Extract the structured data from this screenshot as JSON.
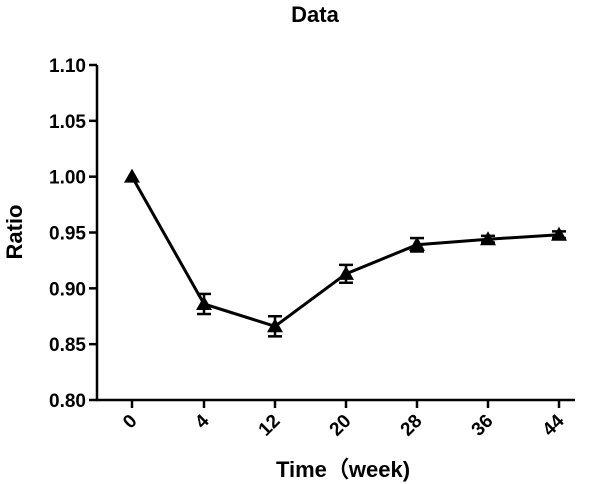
{
  "chart_data": {
    "type": "line",
    "title": "Data",
    "xlabel": "Time（week)",
    "ylabel": "Ratio",
    "categories": [
      "0",
      "4",
      "12",
      "20",
      "28",
      "36",
      "44"
    ],
    "ylim": [
      0.8,
      1.1
    ],
    "yticks": [
      "0.80",
      "0.85",
      "0.90",
      "0.95",
      "1.00",
      "1.05",
      "1.10"
    ],
    "grid": false,
    "marker": "triangle",
    "series": [
      {
        "values": [
          1.0,
          0.886,
          0.866,
          0.913,
          0.939,
          0.944,
          0.948
        ],
        "error": [
          0.0,
          0.009,
          0.009,
          0.008,
          0.006,
          0.003,
          0.003
        ]
      }
    ]
  }
}
